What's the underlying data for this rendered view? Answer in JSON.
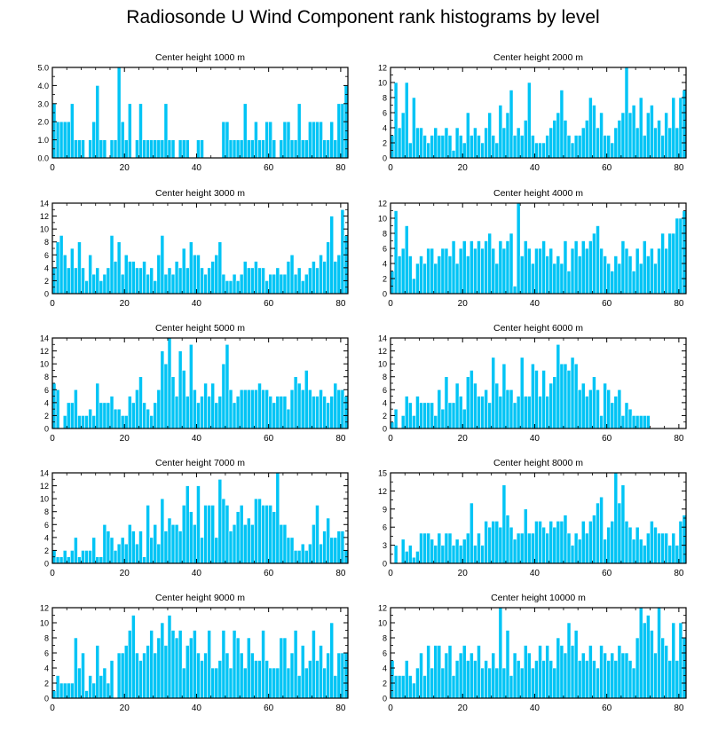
{
  "title": "Radiosonde U Wind Component rank histograms by level",
  "bar_color": "#00c4f5",
  "chart_data": [
    {
      "type": "bar",
      "title": "Center height 1000 m",
      "xlim": [
        0,
        82
      ],
      "ylim": [
        0,
        5
      ],
      "yticks": [
        0,
        1,
        2,
        3,
        4,
        5
      ],
      "ytick_labels": [
        "0.0",
        "1.0",
        "2.0",
        "3.0",
        "4.0",
        "5.0"
      ],
      "xticks": [
        0,
        20,
        40,
        60,
        80
      ],
      "values": [
        3,
        2,
        2,
        2,
        2,
        3,
        1,
        1,
        1,
        0,
        1,
        2,
        4,
        1,
        1,
        0,
        1,
        1,
        5,
        2,
        1,
        3,
        0,
        1,
        3,
        1,
        1,
        1,
        1,
        1,
        1,
        3,
        1,
        1,
        0,
        1,
        1,
        1,
        0,
        0,
        1,
        1,
        0,
        0,
        0,
        0,
        0,
        2,
        2,
        1,
        1,
        1,
        1,
        3,
        1,
        1,
        2,
        1,
        1,
        2,
        2,
        1,
        0,
        1,
        2,
        2,
        1,
        1,
        3,
        1,
        1,
        2,
        2,
        2,
        2,
        1,
        1,
        2,
        1,
        3,
        3,
        4
      ]
    },
    {
      "type": "bar",
      "title": "Center height 2000 m",
      "xlim": [
        0,
        82
      ],
      "ylim": [
        0,
        12
      ],
      "yticks": [
        0,
        2,
        4,
        6,
        8,
        10,
        12
      ],
      "ytick_labels": [
        "0",
        "2",
        "4",
        "6",
        "8",
        "10",
        "12"
      ],
      "xticks": [
        0,
        20,
        40,
        60,
        80
      ],
      "values": [
        3,
        10,
        4,
        6,
        10,
        2,
        8,
        4,
        4,
        3,
        2,
        3,
        4,
        3,
        3,
        4,
        3,
        1,
        4,
        3,
        2,
        6,
        3,
        4,
        3,
        2,
        4,
        6,
        3,
        2,
        7,
        4,
        6,
        9,
        3,
        4,
        3,
        5,
        10,
        3,
        2,
        2,
        2,
        3,
        4,
        5,
        6,
        9,
        5,
        3,
        2,
        3,
        3,
        4,
        5,
        8,
        7,
        4,
        6,
        3,
        3,
        2,
        4,
        5,
        6,
        12,
        6,
        7,
        4,
        8,
        3,
        6,
        7,
        4,
        5,
        3,
        6,
        4,
        8,
        4,
        8,
        9
      ]
    },
    {
      "type": "bar",
      "title": "Center height 3000 m",
      "xlim": [
        0,
        82
      ],
      "ylim": [
        0,
        14
      ],
      "yticks": [
        0,
        2,
        4,
        6,
        8,
        10,
        12,
        14
      ],
      "ytick_labels": [
        "0",
        "2",
        "4",
        "6",
        "8",
        "10",
        "12",
        "14"
      ],
      "xticks": [
        0,
        20,
        40,
        60,
        80
      ],
      "values": [
        4,
        8,
        9,
        6,
        4,
        7,
        4,
        8,
        4,
        2,
        6,
        3,
        4,
        2,
        3,
        4,
        9,
        5,
        8,
        3,
        6,
        5,
        5,
        4,
        4,
        5,
        3,
        4,
        2,
        6,
        9,
        3,
        4,
        3,
        5,
        4,
        7,
        4,
        8,
        6,
        6,
        4,
        3,
        4,
        5,
        6,
        8,
        3,
        2,
        2,
        3,
        2,
        3,
        5,
        4,
        4,
        5,
        4,
        4,
        2,
        3,
        3,
        4,
        3,
        3,
        5,
        6,
        3,
        4,
        2,
        3,
        4,
        5,
        4,
        6,
        5,
        8,
        12,
        5,
        6,
        13,
        9
      ]
    },
    {
      "type": "bar",
      "title": "Center height 4000 m",
      "xlim": [
        0,
        82
      ],
      "ylim": [
        0,
        12
      ],
      "yticks": [
        0,
        2,
        4,
        6,
        8,
        10,
        12
      ],
      "ytick_labels": [
        "0",
        "2",
        "4",
        "6",
        "8",
        "10",
        "12"
      ],
      "xticks": [
        0,
        20,
        40,
        60,
        80
      ],
      "values": [
        3,
        11,
        5,
        6,
        9,
        5,
        2,
        4,
        5,
        4,
        6,
        6,
        4,
        5,
        6,
        6,
        5,
        7,
        4,
        6,
        7,
        5,
        7,
        6,
        7,
        6,
        7,
        8,
        6,
        4,
        7,
        6,
        7,
        8,
        1,
        12,
        5,
        7,
        6,
        4,
        6,
        6,
        7,
        5,
        6,
        4,
        5,
        4,
        7,
        3,
        6,
        7,
        5,
        7,
        6,
        7,
        8,
        9,
        6,
        5,
        4,
        3,
        5,
        4,
        7,
        6,
        5,
        3,
        6,
        4,
        7,
        5,
        6,
        4,
        6,
        8,
        6,
        8,
        8,
        10,
        10,
        11
      ]
    },
    {
      "type": "bar",
      "title": "Center height 5000 m",
      "xlim": [
        0,
        82
      ],
      "ylim": [
        0,
        14
      ],
      "yticks": [
        0,
        2,
        4,
        6,
        8,
        10,
        12,
        14
      ],
      "ytick_labels": [
        "0",
        "2",
        "4",
        "6",
        "8",
        "10",
        "12",
        "14"
      ],
      "xticks": [
        0,
        20,
        40,
        60,
        80
      ],
      "values": [
        7,
        6,
        0,
        2,
        4,
        4,
        6,
        2,
        2,
        2,
        3,
        2,
        7,
        4,
        4,
        4,
        5,
        3,
        3,
        2,
        2,
        5,
        4,
        6,
        8,
        4,
        3,
        2,
        4,
        6,
        12,
        10,
        14,
        8,
        5,
        12,
        9,
        5,
        13,
        6,
        4,
        5,
        7,
        5,
        7,
        4,
        5,
        10,
        13,
        6,
        4,
        5,
        6,
        6,
        6,
        6,
        6,
        7,
        6,
        6,
        5,
        4,
        5,
        5,
        5,
        3,
        6,
        8,
        7,
        6,
        9,
        6,
        5,
        5,
        6,
        5,
        4,
        5,
        7,
        6,
        6,
        5
      ]
    },
    {
      "type": "bar",
      "title": "Center height 6000 m",
      "xlim": [
        0,
        82
      ],
      "ylim": [
        0,
        14
      ],
      "yticks": [
        0,
        2,
        4,
        6,
        8,
        10,
        12,
        14
      ],
      "ytick_labels": [
        "0",
        "2",
        "4",
        "6",
        "8",
        "10",
        "12",
        "14"
      ],
      "xticks": [
        0,
        20,
        40,
        60,
        80
      ],
      "values": [
        1,
        3,
        0,
        2,
        5,
        4,
        2,
        5,
        4,
        4,
        4,
        4,
        2,
        6,
        3,
        8,
        4,
        4,
        7,
        5,
        3,
        8,
        9,
        7,
        5,
        5,
        6,
        4,
        11,
        7,
        5,
        10,
        6,
        6,
        4,
        5,
        11,
        5,
        5,
        10,
        9,
        5,
        9,
        5,
        7,
        8,
        13,
        10,
        10,
        9,
        11,
        10,
        6,
        7,
        5,
        6,
        8,
        6,
        2,
        7,
        6,
        4,
        5,
        6,
        2,
        4,
        3,
        2,
        2,
        2,
        2,
        2
      ]
    },
    {
      "type": "bar",
      "title": "Center height 7000 m",
      "xlim": [
        0,
        82
      ],
      "ylim": [
        0,
        14
      ],
      "yticks": [
        0,
        2,
        4,
        6,
        8,
        10,
        12,
        14
      ],
      "ytick_labels": [
        "0",
        "2",
        "4",
        "6",
        "8",
        "10",
        "12",
        "14"
      ],
      "xticks": [
        0,
        20,
        40,
        60,
        80
      ],
      "values": [
        2,
        1,
        1,
        2,
        1,
        2,
        4,
        1,
        2,
        2,
        2,
        4,
        1,
        1,
        6,
        5,
        4,
        2,
        3,
        4,
        3,
        6,
        5,
        3,
        5,
        1,
        9,
        4,
        6,
        3,
        10,
        5,
        7,
        6,
        6,
        5,
        9,
        12,
        8,
        6,
        12,
        4,
        9,
        9,
        9,
        4,
        13,
        10,
        9,
        5,
        6,
        8,
        9,
        6,
        7,
        6,
        10,
        10,
        9,
        9,
        9,
        8,
        14,
        6,
        6,
        4,
        4,
        2,
        2,
        3,
        2,
        3,
        6,
        9,
        3,
        5,
        7,
        4,
        4,
        5,
        5,
        2
      ]
    },
    {
      "type": "bar",
      "title": "Center height 8000 m",
      "xlim": [
        0,
        82
      ],
      "ylim": [
        0,
        15
      ],
      "yticks": [
        0,
        3,
        6,
        9,
        12,
        15
      ],
      "ytick_labels": [
        "0",
        "3",
        "6",
        "9",
        "12",
        "15"
      ],
      "xticks": [
        0,
        20,
        40,
        60,
        80
      ],
      "values": [
        0,
        3,
        0,
        4,
        2,
        3,
        1,
        2,
        5,
        5,
        5,
        4,
        3,
        5,
        3,
        5,
        5,
        3,
        4,
        3,
        4,
        5,
        10,
        3,
        5,
        3,
        7,
        6,
        7,
        7,
        6,
        13,
        8,
        6,
        4,
        5,
        5,
        9,
        5,
        5,
        7,
        7,
        6,
        5,
        7,
        6,
        7,
        7,
        8,
        5,
        3,
        5,
        4,
        7,
        5,
        7,
        8,
        10,
        11,
        4,
        6,
        7,
        15,
        10,
        13,
        7,
        6,
        4,
        6,
        4,
        3,
        5,
        7,
        6,
        5,
        5,
        5,
        3,
        5,
        3,
        7,
        8
      ]
    },
    {
      "type": "bar",
      "title": "Center height 9000 m",
      "xlim": [
        0,
        82
      ],
      "ylim": [
        0,
        12
      ],
      "yticks": [
        0,
        2,
        4,
        6,
        8,
        10,
        12
      ],
      "ytick_labels": [
        "0",
        "2",
        "4",
        "6",
        "8",
        "10",
        "12"
      ],
      "xticks": [
        0,
        20,
        40,
        60,
        80
      ],
      "values": [
        1,
        3,
        2,
        2,
        2,
        2,
        8,
        4,
        6,
        1,
        3,
        2,
        7,
        3,
        4,
        2,
        5,
        0,
        6,
        6,
        7,
        9,
        11,
        6,
        5,
        6,
        7,
        9,
        6,
        8,
        10,
        7,
        11,
        9,
        8,
        9,
        4,
        7,
        8,
        9,
        6,
        5,
        6,
        9,
        4,
        4,
        5,
        9,
        6,
        4,
        9,
        8,
        6,
        4,
        8,
        6,
        5,
        5,
        9,
        5,
        4,
        4,
        4,
        8,
        8,
        4,
        6,
        9,
        3,
        7,
        4,
        5,
        9,
        5,
        7,
        4,
        6,
        10,
        3,
        6,
        6,
        6
      ]
    },
    {
      "type": "bar",
      "title": "Center height 10000 m",
      "xlim": [
        0,
        82
      ],
      "ylim": [
        0,
        12
      ],
      "yticks": [
        0,
        2,
        4,
        6,
        8,
        10,
        12
      ],
      "ytick_labels": [
        "0",
        "2",
        "4",
        "6",
        "8",
        "10",
        "12"
      ],
      "xticks": [
        0,
        20,
        40,
        60,
        80
      ],
      "values": [
        5,
        3,
        3,
        3,
        5,
        3,
        2,
        4,
        6,
        3,
        7,
        4,
        7,
        7,
        4,
        6,
        7,
        3,
        5,
        6,
        7,
        5,
        6,
        5,
        7,
        4,
        5,
        4,
        6,
        4,
        12,
        4,
        9,
        3,
        6,
        5,
        4,
        7,
        6,
        4,
        5,
        7,
        5,
        7,
        5,
        4,
        8,
        7,
        6,
        10,
        7,
        9,
        5,
        6,
        5,
        7,
        5,
        4,
        7,
        6,
        5,
        6,
        5,
        7,
        6,
        6,
        5,
        4,
        8,
        12,
        10,
        11,
        9,
        6,
        12,
        8,
        7,
        5,
        10,
        5,
        10,
        8
      ]
    }
  ]
}
